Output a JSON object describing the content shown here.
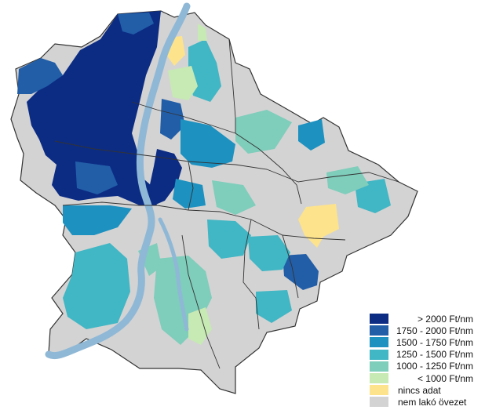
{
  "legend": {
    "items": [
      {
        "label": "> 2000 Ft/nm",
        "color": "#0c2c84"
      },
      {
        "label": "1750 - 2000 Ft/nm",
        "color": "#225ea8"
      },
      {
        "label": "1500 - 1750 Ft/nm",
        "color": "#1d91c0"
      },
      {
        "label": "1250 - 1500 Ft/nm",
        "color": "#41b6c4"
      },
      {
        "label": "1000 - 1250 Ft/nm",
        "color": "#7fcdbb"
      },
      {
        "label": "< 1000 Ft/nm",
        "color": "#c7e9b4"
      },
      {
        "label": "nincs adat",
        "color": "#fde38c"
      },
      {
        "label": "nem lakó övezet",
        "color": "#d3d3d3"
      }
    ]
  },
  "colors": {
    "river": "#8fb8d6",
    "boundary": "#333333"
  }
}
